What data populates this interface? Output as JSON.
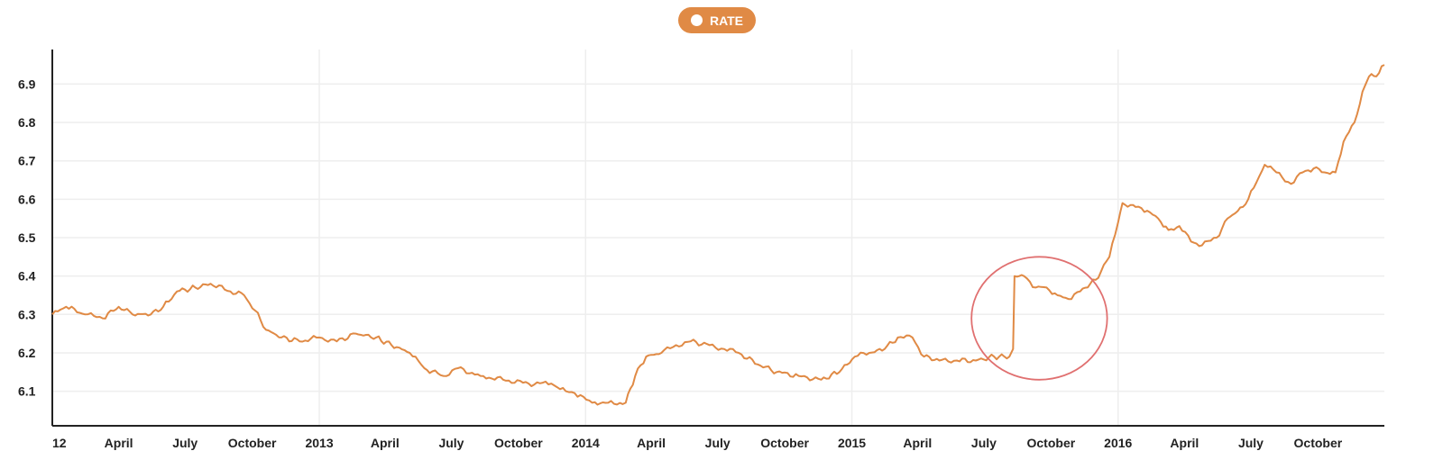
{
  "legend": {
    "label": "RATE"
  },
  "colors": {
    "series": "#e08a45",
    "annotation": "#e07070",
    "grid": "#eeeeee",
    "axis": "#222222"
  },
  "chart_data": {
    "type": "line",
    "title": "",
    "xlabel": "",
    "ylabel": "",
    "x_range": [
      "2012-01-01",
      "2016-12-31"
    ],
    "ylim": [
      6.01,
      6.99
    ],
    "grid": {
      "horizontal": true,
      "vertical_at_year_starts": true
    },
    "legend_position": "top-center",
    "x_tick_labels": [
      {
        "date": "2012-01-01",
        "label": "12"
      },
      {
        "date": "2012-04-01",
        "label": "April"
      },
      {
        "date": "2012-07-01",
        "label": "July"
      },
      {
        "date": "2012-10-01",
        "label": "October"
      },
      {
        "date": "2013-01-01",
        "label": "2013"
      },
      {
        "date": "2013-04-01",
        "label": "April"
      },
      {
        "date": "2013-07-01",
        "label": "July"
      },
      {
        "date": "2013-10-01",
        "label": "October"
      },
      {
        "date": "2014-01-01",
        "label": "2014"
      },
      {
        "date": "2014-04-01",
        "label": "April"
      },
      {
        "date": "2014-07-01",
        "label": "July"
      },
      {
        "date": "2014-10-01",
        "label": "October"
      },
      {
        "date": "2015-01-01",
        "label": "2015"
      },
      {
        "date": "2015-04-01",
        "label": "April"
      },
      {
        "date": "2015-07-01",
        "label": "July"
      },
      {
        "date": "2015-10-01",
        "label": "October"
      },
      {
        "date": "2016-01-01",
        "label": "2016"
      },
      {
        "date": "2016-04-01",
        "label": "April"
      },
      {
        "date": "2016-07-01",
        "label": "July"
      },
      {
        "date": "2016-10-01",
        "label": "October"
      }
    ],
    "y_ticks": [
      6.1,
      6.2,
      6.3,
      6.4,
      6.5,
      6.6,
      6.7,
      6.8,
      6.9
    ],
    "series": [
      {
        "name": "RATE",
        "points": [
          [
            "2012-01-01",
            6.3
          ],
          [
            "2012-01-20",
            6.32
          ],
          [
            "2012-02-15",
            6.3
          ],
          [
            "2012-03-10",
            6.29
          ],
          [
            "2012-04-01",
            6.32
          ],
          [
            "2012-04-20",
            6.3
          ],
          [
            "2012-05-15",
            6.3
          ],
          [
            "2012-06-01",
            6.32
          ],
          [
            "2012-06-20",
            6.36
          ],
          [
            "2012-07-15",
            6.37
          ],
          [
            "2012-08-05",
            6.38
          ],
          [
            "2012-09-01",
            6.36
          ],
          [
            "2012-09-20",
            6.35
          ],
          [
            "2012-10-05",
            6.31
          ],
          [
            "2012-10-20",
            6.26
          ],
          [
            "2012-11-10",
            6.24
          ],
          [
            "2012-12-05",
            6.23
          ],
          [
            "2013-01-01",
            6.24
          ],
          [
            "2013-01-25",
            6.23
          ],
          [
            "2013-02-20",
            6.25
          ],
          [
            "2013-03-20",
            6.24
          ],
          [
            "2013-04-10",
            6.22
          ],
          [
            "2013-05-05",
            6.2
          ],
          [
            "2013-05-25",
            6.16
          ],
          [
            "2013-06-20",
            6.14
          ],
          [
            "2013-07-10",
            6.16
          ],
          [
            "2013-08-10",
            6.14
          ],
          [
            "2013-09-10",
            6.13
          ],
          [
            "2013-10-15",
            6.12
          ],
          [
            "2013-11-15",
            6.12
          ],
          [
            "2013-12-05",
            6.1
          ],
          [
            "2013-12-25",
            6.09
          ],
          [
            "2014-01-10",
            6.07
          ],
          [
            "2014-02-01",
            6.07
          ],
          [
            "2014-02-25",
            6.07
          ],
          [
            "2014-03-10",
            6.14
          ],
          [
            "2014-03-25",
            6.19
          ],
          [
            "2014-04-15",
            6.2
          ],
          [
            "2014-05-05",
            6.22
          ],
          [
            "2014-05-25",
            6.23
          ],
          [
            "2014-06-20",
            6.22
          ],
          [
            "2014-07-10",
            6.21
          ],
          [
            "2014-07-30",
            6.2
          ],
          [
            "2014-08-25",
            6.17
          ],
          [
            "2014-09-20",
            6.15
          ],
          [
            "2014-10-20",
            6.14
          ],
          [
            "2014-11-20",
            6.13
          ],
          [
            "2014-12-15",
            6.15
          ],
          [
            "2015-01-05",
            6.19
          ],
          [
            "2015-01-25",
            6.2
          ],
          [
            "2015-02-15",
            6.21
          ],
          [
            "2015-03-05",
            6.24
          ],
          [
            "2015-03-25",
            6.24
          ],
          [
            "2015-04-10",
            6.19
          ],
          [
            "2015-05-01",
            6.18
          ],
          [
            "2015-05-25",
            6.18
          ],
          [
            "2015-06-20",
            6.18
          ],
          [
            "2015-07-15",
            6.19
          ],
          [
            "2015-08-05",
            6.19
          ],
          [
            "2015-08-10",
            6.21
          ],
          [
            "2015-08-12",
            6.4
          ],
          [
            "2015-08-25",
            6.4
          ],
          [
            "2015-09-10",
            6.37
          ],
          [
            "2015-09-25",
            6.37
          ],
          [
            "2015-10-10",
            6.35
          ],
          [
            "2015-10-25",
            6.34
          ],
          [
            "2015-11-10",
            6.36
          ],
          [
            "2015-12-01",
            6.39
          ],
          [
            "2015-12-20",
            6.45
          ],
          [
            "2016-01-01",
            6.54
          ],
          [
            "2016-01-07",
            6.59
          ],
          [
            "2016-01-25",
            6.58
          ],
          [
            "2016-02-10",
            6.57
          ],
          [
            "2016-02-25",
            6.55
          ],
          [
            "2016-03-10",
            6.52
          ],
          [
            "2016-03-25",
            6.53
          ],
          [
            "2016-04-10",
            6.49
          ],
          [
            "2016-04-25",
            6.48
          ],
          [
            "2016-05-15",
            6.5
          ],
          [
            "2016-05-30",
            6.55
          ],
          [
            "2016-06-20",
            6.58
          ],
          [
            "2016-07-05",
            6.63
          ],
          [
            "2016-07-20",
            6.69
          ],
          [
            "2016-08-05",
            6.67
          ],
          [
            "2016-08-25",
            6.64
          ],
          [
            "2016-09-10",
            6.67
          ],
          [
            "2016-09-25",
            6.68
          ],
          [
            "2016-10-10",
            6.67
          ],
          [
            "2016-10-25",
            6.67
          ],
          [
            "2016-11-05",
            6.75
          ],
          [
            "2016-11-20",
            6.8
          ],
          [
            "2016-12-01",
            6.88
          ],
          [
            "2016-12-10",
            6.92
          ],
          [
            "2016-12-20",
            6.92
          ],
          [
            "2016-12-31",
            6.95
          ]
        ]
      }
    ],
    "annotations": [
      {
        "type": "ellipse",
        "x_center": "2015-09-15",
        "y_center": 6.29,
        "x_radius_days": 93,
        "y_radius": 0.16
      }
    ]
  }
}
